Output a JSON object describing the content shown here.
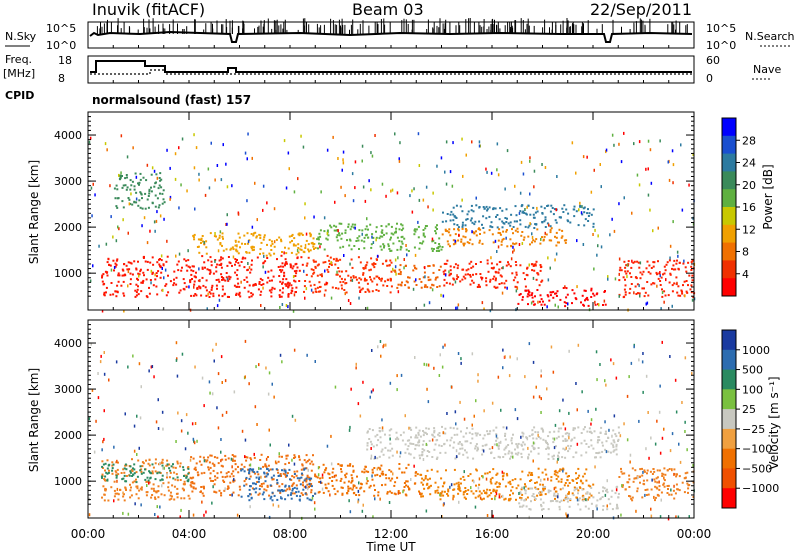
{
  "header": {
    "station": "Inuvik (fitACF)",
    "beam": "Beam 03",
    "date": "22/Sep/2011"
  },
  "meta_panels": {
    "nsky_label": "N.Sky",
    "nsky_ticks": [
      "10^5",
      "10^0"
    ],
    "nsearch_label": "N.Search",
    "nsearch_ticks": [
      "10^5",
      "10^0"
    ],
    "freq_label_1": "Freq.",
    "freq_label_2": "[MHz]",
    "freq_ticks": [
      "18",
      "8"
    ],
    "nave_label": "Nave",
    "nave_ticks": [
      "60",
      "0"
    ],
    "cpid_label": "CPID",
    "cpid_value": "normalsound (fast) 157"
  },
  "chart_data": [
    {
      "type": "heatmap",
      "name": "power",
      "ylabel": "Slant Range [km]",
      "yticks": [
        "1000",
        "2000",
        "3000",
        "4000"
      ],
      "ylim": [
        200,
        4500
      ],
      "colorbar_label": "Power [dB]",
      "colorbar_ticks": [
        "4",
        "8",
        "12",
        "16",
        "20",
        "24",
        "28"
      ],
      "colorbar_colors": [
        "#0000ff",
        "#1a4fd0",
        "#2c7aa0",
        "#3a8a5a",
        "#5fb040",
        "#c8c800",
        "#f0a000",
        "#f07000",
        "#f03000",
        "#ff0000"
      ],
      "bands": [
        {
          "t0": 0.5,
          "t1": 8.5,
          "r0": 500,
          "r1": 1400,
          "color": "#ff1500"
        },
        {
          "t0": 8.5,
          "t1": 12,
          "r0": 600,
          "r1": 1400,
          "color": "#ff3000"
        },
        {
          "t0": 12,
          "t1": 14,
          "r0": 700,
          "r1": 1200,
          "color": "#f06000"
        },
        {
          "t0": 14,
          "t1": 18,
          "r0": 700,
          "r1": 1300,
          "color": "#ff2000"
        },
        {
          "t0": 17,
          "t1": 20.5,
          "r0": 300,
          "r1": 700,
          "color": "#ff0000"
        },
        {
          "t0": 21,
          "t1": 24,
          "r0": 500,
          "r1": 1300,
          "color": "#ff2000"
        },
        {
          "t0": 4,
          "t1": 9,
          "r0": 1400,
          "r1": 1900,
          "color": "#f0a000"
        },
        {
          "t0": 9,
          "t1": 14,
          "r0": 1500,
          "r1": 2100,
          "color": "#5fb040"
        },
        {
          "t0": 14,
          "t1": 19,
          "r0": 1600,
          "r1": 2000,
          "color": "#f08000"
        },
        {
          "t0": 14,
          "t1": 20,
          "r0": 2000,
          "r1": 2500,
          "color": "#2c7aa0"
        },
        {
          "t0": 1,
          "t1": 3,
          "r0": 2400,
          "r1": 3200,
          "color": "#3a8a5a"
        }
      ]
    },
    {
      "type": "heatmap",
      "name": "velocity",
      "ylabel": "Slant Range [km]",
      "yticks": [
        "1000",
        "2000",
        "3000",
        "4000"
      ],
      "ylim": [
        200,
        4500
      ],
      "colorbar_label": "Velocity [m s⁻¹]",
      "colorbar_ticks": [
        "1000",
        "500",
        "100",
        "25",
        "−25",
        "−100",
        "−500",
        "−1000"
      ],
      "colorbar_colors": [
        "#1a3aa0",
        "#2c6cb0",
        "#2a8a60",
        "#7ac040",
        "#c8c8c0",
        "#f0a040",
        "#f07000",
        "#f05000",
        "#ff0000"
      ],
      "bands": [
        {
          "t0": 0.5,
          "t1": 4,
          "r0": 600,
          "r1": 1500,
          "color": "#f08020"
        },
        {
          "t0": 0.5,
          "t1": 4,
          "r0": 1000,
          "r1": 1400,
          "color": "#2a8a60"
        },
        {
          "t0": 4,
          "t1": 9,
          "r0": 700,
          "r1": 1600,
          "color": "#f07010"
        },
        {
          "t0": 6,
          "t1": 9,
          "r0": 600,
          "r1": 1300,
          "color": "#2c6cb0"
        },
        {
          "t0": 9,
          "t1": 13,
          "r0": 700,
          "r1": 1400,
          "color": "#f07000"
        },
        {
          "t0": 13,
          "t1": 20,
          "r0": 600,
          "r1": 1300,
          "color": "#f08000"
        },
        {
          "t0": 11,
          "t1": 21,
          "r0": 1500,
          "r1": 2200,
          "color": "#c8c8c0"
        },
        {
          "t0": 21,
          "t1": 24,
          "r0": 600,
          "r1": 1300,
          "color": "#f08020"
        },
        {
          "t0": 17,
          "t1": 21,
          "r0": 400,
          "r1": 900,
          "color": "#c8c8c0"
        }
      ]
    }
  ],
  "xaxis": {
    "label": "Time UT",
    "ticks": [
      "00:00",
      "04:00",
      "08:00",
      "12:00",
      "16:00",
      "20:00",
      "00:00"
    ],
    "range_hours": [
      0,
      24
    ]
  }
}
